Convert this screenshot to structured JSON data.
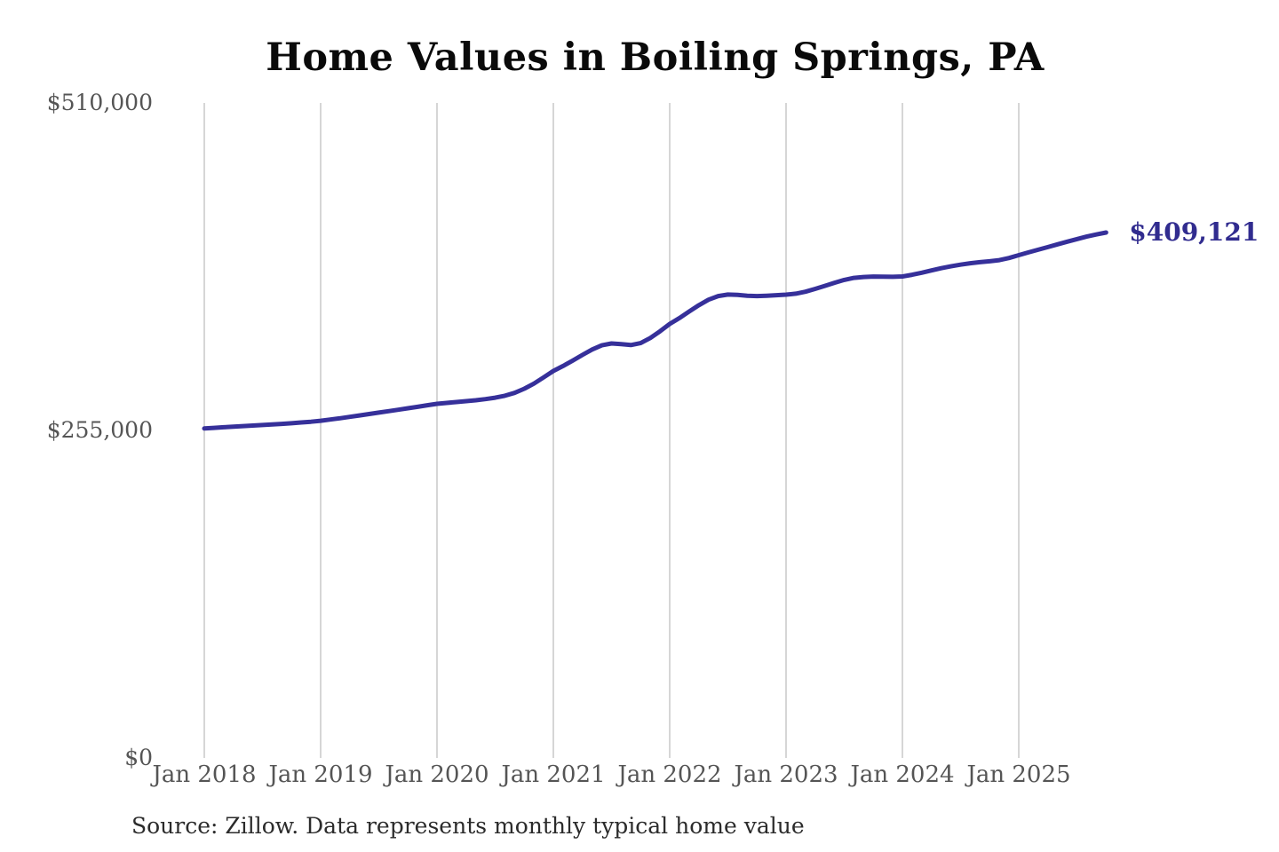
{
  "title": "Home Values in Boiling Springs, PA",
  "source_note": "Source: Zillow. Data represents monthly typical home value",
  "latest_value_label": "$409,121",
  "colors": {
    "background": "#ffffff",
    "title_text": "#0a0a0a",
    "axis_text": "#555555",
    "grid": "#c9c9c9",
    "line": "#36309a",
    "value_label": "#312c8f",
    "source_text": "#2b2b2b"
  },
  "chart_data": {
    "type": "line",
    "title": "Home Values in Boiling Springs, PA",
    "xlabel": "",
    "ylabel": "",
    "ylim": [
      0,
      510000
    ],
    "grid": "vertical-only",
    "legend": "none",
    "x_tick_labels": [
      "Jan 2018",
      "Jan 2019",
      "Jan 2020",
      "Jan 2021",
      "Jan 2022",
      "Jan 2023",
      "Jan 2024",
      "Jan 2025"
    ],
    "y_ticks": [
      {
        "label": "$510,000",
        "value": 510000
      },
      {
        "label": "$255,000",
        "value": 255000
      },
      {
        "label": "$0",
        "value": 0
      }
    ],
    "end_annotation": "$409,121",
    "series": [
      {
        "name": "Monthly typical home value",
        "frequency": "monthly",
        "start": "2018-01",
        "end": "2025-10",
        "values": [
          256500,
          257000,
          257500,
          258000,
          258400,
          258800,
          259200,
          259600,
          260100,
          260600,
          261200,
          261800,
          262500,
          263500,
          264500,
          265600,
          266700,
          267800,
          268900,
          270000,
          271100,
          272300,
          273400,
          274600,
          275700,
          276400,
          277100,
          277800,
          278500,
          279400,
          280500,
          282000,
          284200,
          287500,
          291500,
          296300,
          301300,
          305200,
          309400,
          313800,
          318000,
          321300,
          322700,
          322200,
          321500,
          323000,
          327000,
          332200,
          337900,
          342500,
          347500,
          352500,
          356800,
          359600,
          360800,
          360500,
          359900,
          359600,
          359900,
          360300,
          360700,
          361500,
          363000,
          365200,
          367600,
          370000,
          372200,
          373800,
          374500,
          374800,
          374700,
          374600,
          374900,
          376200,
          377800,
          379600,
          381300,
          382800,
          384100,
          385200,
          386000,
          386700,
          387600,
          389300,
          391500,
          393600,
          395700,
          397800,
          399900,
          402000,
          404000,
          405900,
          407600,
          409121
        ]
      }
    ]
  }
}
